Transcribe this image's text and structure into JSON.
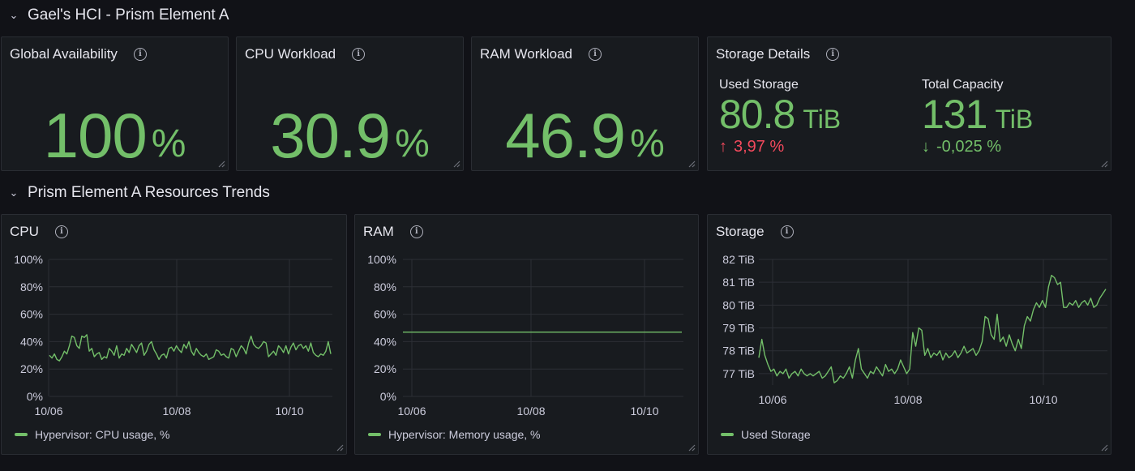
{
  "rows": [
    {
      "title": "Gael's HCI - Prism Element A"
    },
    {
      "title": "Prism Element A Resources Trends"
    }
  ],
  "stats": {
    "availability": {
      "title": "Global Availability",
      "value": "100",
      "unit": "%"
    },
    "cpu": {
      "title": "CPU Workload",
      "value": "30.9",
      "unit": "%"
    },
    "ram": {
      "title": "RAM Workload",
      "value": "46.9",
      "unit": "%"
    },
    "storage": {
      "title": "Storage Details",
      "used": {
        "label": "Used Storage",
        "value": "80.8",
        "unit": "TiB",
        "delta": "3,97 %",
        "direction": "up"
      },
      "total": {
        "label": "Total Capacity",
        "value": "131",
        "unit": "TiB",
        "delta": "-0,025 %",
        "direction": "down"
      }
    }
  },
  "colors": {
    "series": "#73bf69",
    "up": "#f2495c",
    "down": "#73bf69"
  },
  "icons": {
    "row": "chevron-down-icon",
    "info": "info-icon",
    "resize": "resize-handle-icon"
  },
  "chart_data": [
    {
      "type": "line",
      "title": "CPU",
      "x_ticks": [
        "10/06",
        "10/08",
        "10/10"
      ],
      "y_ticks": [
        "100%",
        "80%",
        "60%",
        "40%",
        "20%",
        "0%"
      ],
      "ylim": [
        0,
        100
      ],
      "xlim": [
        "10/06",
        "10/11"
      ],
      "grid": true,
      "legend_placement": "bottom-left",
      "series": [
        {
          "name": "Hypervisor: CPU usage, %",
          "values": [
            30,
            28,
            31,
            27,
            26,
            29,
            33,
            31,
            37,
            44,
            43,
            37,
            35,
            44,
            43,
            45,
            33,
            35,
            29,
            31,
            32,
            27,
            29,
            28,
            35,
            33,
            30,
            37,
            28,
            31,
            30,
            35,
            32,
            38,
            35,
            32,
            37,
            39,
            30,
            33,
            38,
            40,
            34,
            31,
            27,
            30,
            31,
            28,
            35,
            36,
            33,
            37,
            34,
            32,
            38,
            35,
            40,
            33,
            30,
            35,
            32,
            30,
            29,
            31,
            27,
            28,
            29,
            34,
            33,
            30,
            31,
            29,
            28,
            35,
            34,
            29,
            33,
            37,
            35,
            31,
            39,
            44,
            38,
            36,
            35,
            37,
            40,
            39,
            29,
            31,
            33,
            30,
            37,
            35,
            32,
            37,
            31,
            36,
            39,
            34,
            37,
            38,
            35,
            37,
            33,
            39,
            32,
            30,
            29,
            31,
            30,
            33,
            40,
            31
          ]
        }
      ]
    },
    {
      "type": "line",
      "title": "RAM",
      "x_ticks": [
        "10/06",
        "10/08",
        "10/10"
      ],
      "y_ticks": [
        "100%",
        "80%",
        "60%",
        "40%",
        "20%",
        "0%"
      ],
      "ylim": [
        0,
        100
      ],
      "xlim": [
        "10/06",
        "10/11"
      ],
      "grid": true,
      "legend_placement": "bottom-left",
      "series": [
        {
          "name": "Hypervisor: Memory usage, %",
          "values": [
            46.9,
            46.9
          ]
        }
      ]
    },
    {
      "type": "line",
      "title": "Storage",
      "x_ticks": [
        "10/06",
        "10/08",
        "10/10"
      ],
      "y_ticks": [
        "82 TiB",
        "81 TiB",
        "80 TiB",
        "79 TiB",
        "78 TiB",
        "77 TiB"
      ],
      "ylim": [
        76.5,
        82
      ],
      "xlim": [
        "10/06",
        "10/11"
      ],
      "grid": true,
      "legend_placement": "bottom-left",
      "series": [
        {
          "name": "Used Storage",
          "values": [
            77.7,
            78.5,
            77.8,
            77.4,
            77.1,
            77.2,
            76.9,
            77.1,
            77.0,
            77.2,
            76.8,
            77.0,
            77.1,
            76.9,
            77.2,
            77.0,
            76.9,
            77.0,
            76.9,
            77.0,
            77.1,
            76.8,
            76.9,
            77.1,
            77.3,
            76.6,
            76.7,
            76.9,
            76.8,
            77.0,
            77.3,
            76.8,
            77.6,
            78.1,
            77.2,
            77.0,
            76.8,
            77.1,
            77.0,
            77.3,
            77.1,
            76.9,
            77.4,
            77.1,
            77.2,
            77.0,
            77.2,
            77.6,
            77.3,
            77.0,
            77.2,
            78.8,
            78.2,
            79.0,
            78.9,
            77.8,
            78.1,
            77.7,
            77.9,
            77.8,
            78.0,
            77.6,
            77.9,
            77.7,
            77.8,
            78.0,
            77.7,
            77.9,
            78.2,
            77.9,
            78.0,
            78.1,
            77.8,
            78.0,
            78.4,
            79.5,
            79.4,
            78.7,
            78.5,
            79.6,
            78.4,
            78.6,
            78.2,
            78.7,
            78.3,
            78.0,
            78.5,
            78.1,
            79.1,
            79.5,
            79.3,
            79.8,
            80.1,
            79.9,
            80.2,
            79.9,
            80.8,
            81.3,
            81.2,
            80.9,
            81.0,
            79.9,
            79.9,
            80.1,
            80.0,
            80.2,
            79.9,
            80.1,
            80.2,
            80.0,
            80.3,
            79.9,
            80.0,
            80.3,
            80.5,
            80.7
          ]
        }
      ]
    }
  ]
}
